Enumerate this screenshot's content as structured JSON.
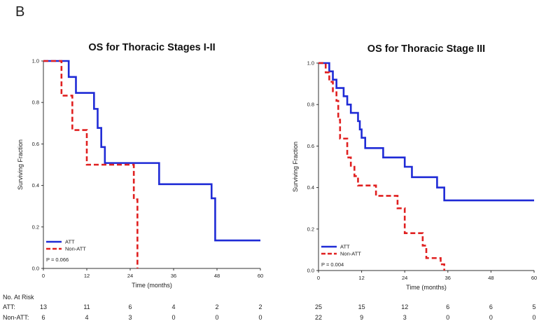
{
  "panel_label": "B",
  "risk_table": {
    "header": "No. At Risk",
    "row_labels": [
      "ATT:",
      "Non-ATT:"
    ]
  },
  "chart_data": [
    {
      "type": "line",
      "title": "OS for Thoracic Stages I-II",
      "xlabel": "Time (months)",
      "ylabel": "Surviving Fraction",
      "xlim": [
        0,
        60
      ],
      "ylim": [
        0,
        1.0
      ],
      "xticks": [
        0,
        12,
        24,
        36,
        48,
        60
      ],
      "yticks": [
        0.0,
        0.2,
        0.4,
        0.6,
        0.8,
        1.0
      ],
      "grid": false,
      "legend_position": "bottom-left",
      "annotation": "P = 0.066",
      "series": [
        {
          "name": "ATT",
          "color": "#1f2bd6",
          "dash": "solid",
          "steps": [
            [
              0,
              1.0
            ],
            [
              7,
              0.923
            ],
            [
              9,
              0.846
            ],
            [
              14,
              0.769
            ],
            [
              15,
              0.677
            ],
            [
              16,
              0.585
            ],
            [
              17,
              0.508
            ],
            [
              32,
              0.406
            ],
            [
              46.5,
              0.338
            ],
            [
              47.5,
              0.135
            ],
            [
              60,
              0.135
            ]
          ]
        },
        {
          "name": "Non-ATT",
          "color": "#e02020",
          "dash": "dashed",
          "steps": [
            [
              0,
              1.0
            ],
            [
              5,
              0.833
            ],
            [
              8,
              0.667
            ],
            [
              12,
              0.5
            ],
            [
              25,
              0.333
            ],
            [
              26,
              0.0
            ]
          ]
        }
      ],
      "risk_times": [
        0,
        12,
        24,
        36,
        48,
        60
      ],
      "risk": [
        [
          13,
          11,
          6,
          4,
          2,
          2
        ],
        [
          6,
          4,
          3,
          0,
          0,
          0
        ]
      ]
    },
    {
      "type": "line",
      "title": "OS for Thoracic Stage III",
      "xlabel": "Time (months)",
      "ylabel": "Surviving Fraction",
      "xlim": [
        0,
        60
      ],
      "ylim": [
        0,
        1.0
      ],
      "xticks": [
        0,
        12,
        24,
        36,
        48,
        60
      ],
      "yticks": [
        0.0,
        0.2,
        0.4,
        0.6,
        0.8,
        1.0
      ],
      "grid": false,
      "legend_position": "bottom-left",
      "annotation": "P = 0.004",
      "series": [
        {
          "name": "ATT",
          "color": "#1f2bd6",
          "dash": "solid",
          "steps": [
            [
              0,
              1.0
            ],
            [
              3,
              0.96
            ],
            [
              4,
              0.92
            ],
            [
              5,
              0.88
            ],
            [
              7,
              0.84
            ],
            [
              8,
              0.8
            ],
            [
              9,
              0.76
            ],
            [
              11,
              0.72
            ],
            [
              11.5,
              0.68
            ],
            [
              12,
              0.64
            ],
            [
              13,
              0.59
            ],
            [
              18,
              0.545
            ],
            [
              24,
              0.5
            ],
            [
              26,
              0.45
            ],
            [
              33,
              0.4
            ],
            [
              35,
              0.338
            ],
            [
              60,
              0.338
            ]
          ]
        },
        {
          "name": "Non-ATT",
          "color": "#e02020",
          "dash": "dashed",
          "steps": [
            [
              0,
              1.0
            ],
            [
              2,
              0.955
            ],
            [
              3,
              0.91
            ],
            [
              4,
              0.864
            ],
            [
              5,
              0.818
            ],
            [
              5.5,
              0.727
            ],
            [
              6,
              0.636
            ],
            [
              8,
              0.545
            ],
            [
              9,
              0.5
            ],
            [
              10,
              0.455
            ],
            [
              11,
              0.41
            ],
            [
              16,
              0.36
            ],
            [
              22,
              0.3
            ],
            [
              24,
              0.18
            ],
            [
              29,
              0.12
            ],
            [
              30,
              0.06
            ],
            [
              34,
              0.03
            ],
            [
              35,
              0.0
            ]
          ]
        }
      ],
      "risk_times": [
        0,
        12,
        24,
        36,
        48,
        60
      ],
      "risk": [
        [
          25,
          15,
          12,
          6,
          6,
          5
        ],
        [
          22,
          9,
          3,
          0,
          0,
          0
        ]
      ]
    }
  ]
}
